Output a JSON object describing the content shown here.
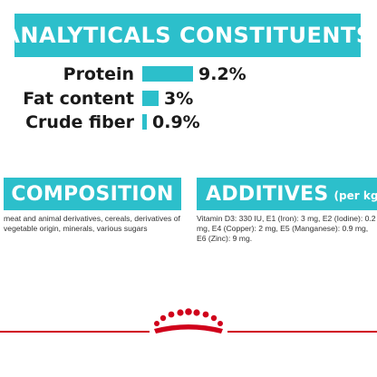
{
  "analytical": {
    "title": "ANALYTICALS CONSTITUENTS",
    "rows": [
      {
        "label": "Protein",
        "value": "9.2%",
        "percent": 9.2
      },
      {
        "label": "Fat content",
        "value": "3%",
        "percent": 3
      },
      {
        "label": "Crude fiber",
        "value": "0.9%",
        "percent": 0.9
      }
    ]
  },
  "composition": {
    "title": "COMPOSITION",
    "text": "meat and animal derivatives, cereals, derivatives of vegetable origin, minerals, various sugars"
  },
  "additives": {
    "title": "ADDITIVES",
    "suffix": "(per kg)",
    "text": "Vitamin D3: 330 IU, E1 (Iron): 3 mg, E2 (Iodine): 0.2 mg, E4 (Copper): 2 mg, E5 (Manganese): 0.9 mg, E6 (Zinc): 9 mg."
  },
  "colors": {
    "accent": "#2cbfcb",
    "footer_line": "#d0021b",
    "crown": "#d0021b"
  },
  "logo": {
    "icon": "royal-canin-crown-logo"
  }
}
